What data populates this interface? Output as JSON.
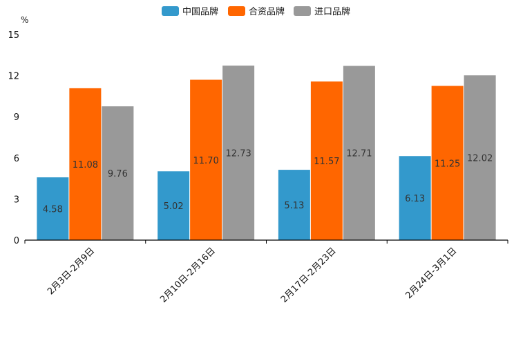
{
  "chart_data": {
    "type": "bar",
    "categories": [
      "2月3日-2月9日",
      "2月10日-2月16日",
      "2月17日-2月23日",
      "2月24日-3月1日"
    ],
    "series": [
      {
        "name": "中国品牌",
        "color": "#3399cc",
        "values": [
          4.58,
          5.02,
          5.13,
          6.13
        ]
      },
      {
        "name": "合资品牌",
        "color": "#ff6600",
        "values": [
          11.08,
          11.7,
          11.57,
          11.25
        ]
      },
      {
        "name": "进口品牌",
        "color": "#999999",
        "values": [
          9.76,
          12.73,
          12.71,
          12.02
        ]
      }
    ],
    "data_labels": [
      [
        "4.58",
        "5.02",
        "5.13",
        "6.13"
      ],
      [
        "11.08",
        "11.70",
        "11.57",
        "11.25"
      ],
      [
        "9.76",
        "12.73",
        "12.71",
        "12.02"
      ]
    ],
    "y_unit": "%",
    "ylim": [
      0,
      15
    ],
    "yticks": [
      0,
      3,
      6,
      9,
      12,
      15
    ],
    "ytick_labels": [
      "0",
      "3",
      "6",
      "9",
      "12",
      "15"
    ],
    "grid": false,
    "legend_position": "top-center",
    "title": "",
    "xlabel": "",
    "ylabel": ""
  }
}
